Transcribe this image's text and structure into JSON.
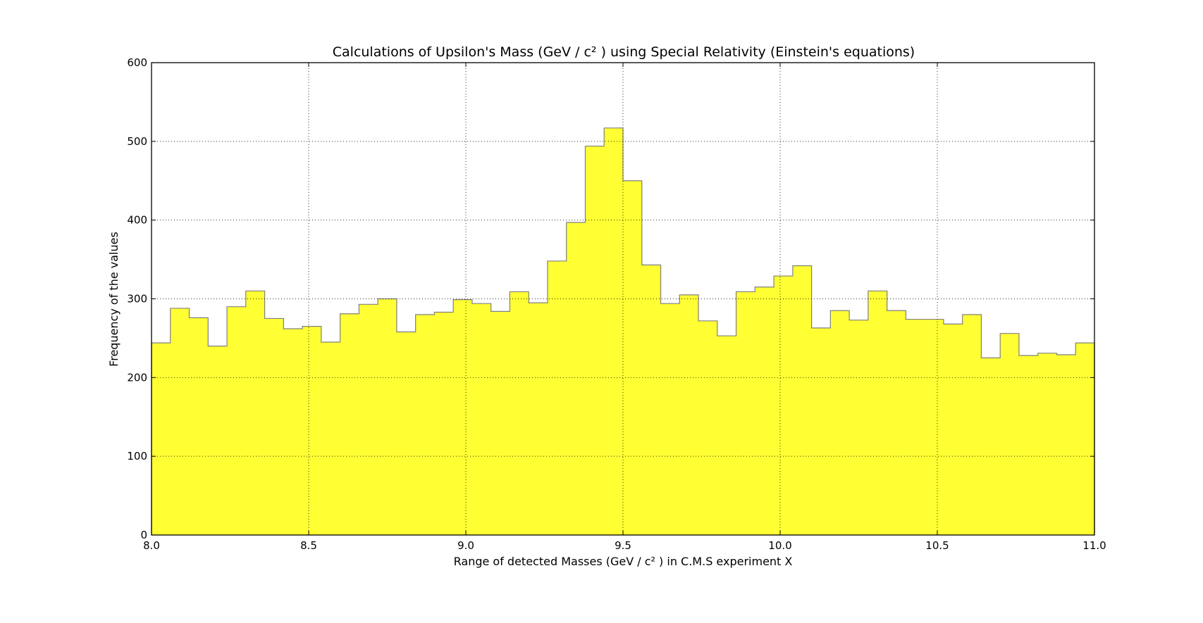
{
  "chart_data": {
    "type": "bar",
    "title": "Calculations of Upsilon's Mass (GeV / c² ) using Special Relativity (Einstein's equations)",
    "xlabel": "Range of detected Masses (GeV / c² ) in C.M.S experiment X",
    "ylabel": "Frequency of the values",
    "xlim": [
      8.0,
      11.0
    ],
    "ylim": [
      0,
      600
    ],
    "bin_edges": [
      8.0,
      11.0
    ],
    "bin_count": 50,
    "x_ticks": [
      "8.0",
      "8.5",
      "9.0",
      "9.5",
      "10.0",
      "10.5",
      "11.0"
    ],
    "y_ticks": [
      "0",
      "100",
      "200",
      "300",
      "400",
      "500",
      "600"
    ],
    "grid": true,
    "legend": "none",
    "values": [
      244,
      288,
      276,
      240,
      290,
      310,
      275,
      262,
      265,
      245,
      281,
      293,
      300,
      258,
      280,
      283,
      299,
      294,
      284,
      309,
      295,
      348,
      397,
      494,
      517,
      450,
      343,
      294,
      305,
      272,
      253,
      309,
      315,
      329,
      342,
      263,
      285,
      273,
      310,
      285,
      274,
      274,
      268,
      280,
      225,
      256,
      228,
      231,
      229,
      244
    ],
    "colors": {
      "fill": "#ffff33",
      "edge": "#808080"
    }
  }
}
